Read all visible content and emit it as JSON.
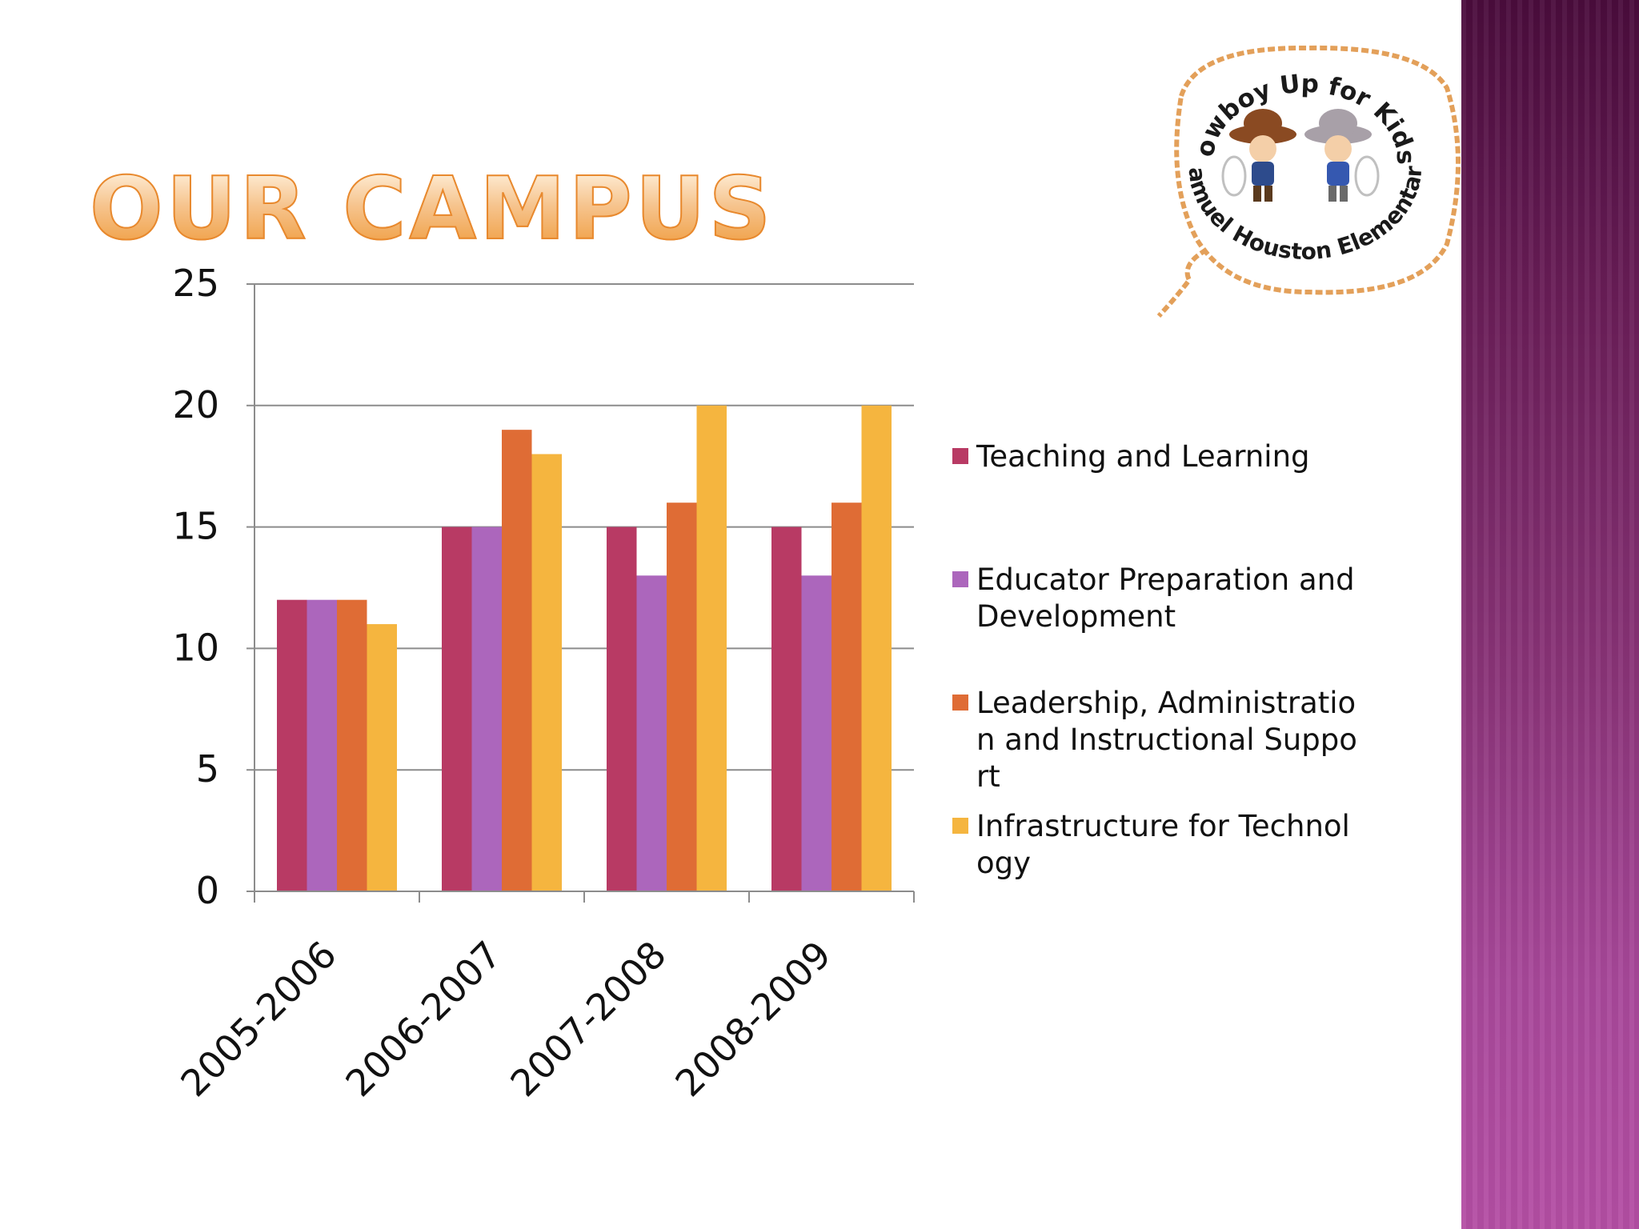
{
  "slide": {
    "title": "OUR CAMPUS",
    "logo": {
      "top_text": "Cowboy Up for Kids!",
      "bottom_text": "Samuel Houston Elementary"
    }
  },
  "colors": {
    "accent_title": "#ef9a3a",
    "band": "#8a3478"
  },
  "chart_data": {
    "type": "bar",
    "title": "",
    "xlabel": "",
    "ylabel": "",
    "ylim": [
      0,
      25
    ],
    "yticks": [
      0,
      5,
      10,
      15,
      20,
      25
    ],
    "grid": true,
    "legend_position": "right",
    "categories": [
      "2005-2006",
      "2006-2007",
      "2007-2008",
      "2008-2009"
    ],
    "series": [
      {
        "name": "Teaching and Learning",
        "color": "#b83a64",
        "values": [
          12,
          15,
          15,
          15
        ]
      },
      {
        "name": "Educator Preparation and Development",
        "color": "#ac66bc",
        "values": [
          12,
          15,
          13,
          13
        ]
      },
      {
        "name": "Leadership, Administration and Instructional Support",
        "color": "#df6c35",
        "values": [
          12,
          19,
          16,
          16
        ]
      },
      {
        "name": "Infrastructure for Technology",
        "color": "#f5b53f",
        "values": [
          11,
          18,
          20,
          20
        ]
      }
    ]
  }
}
